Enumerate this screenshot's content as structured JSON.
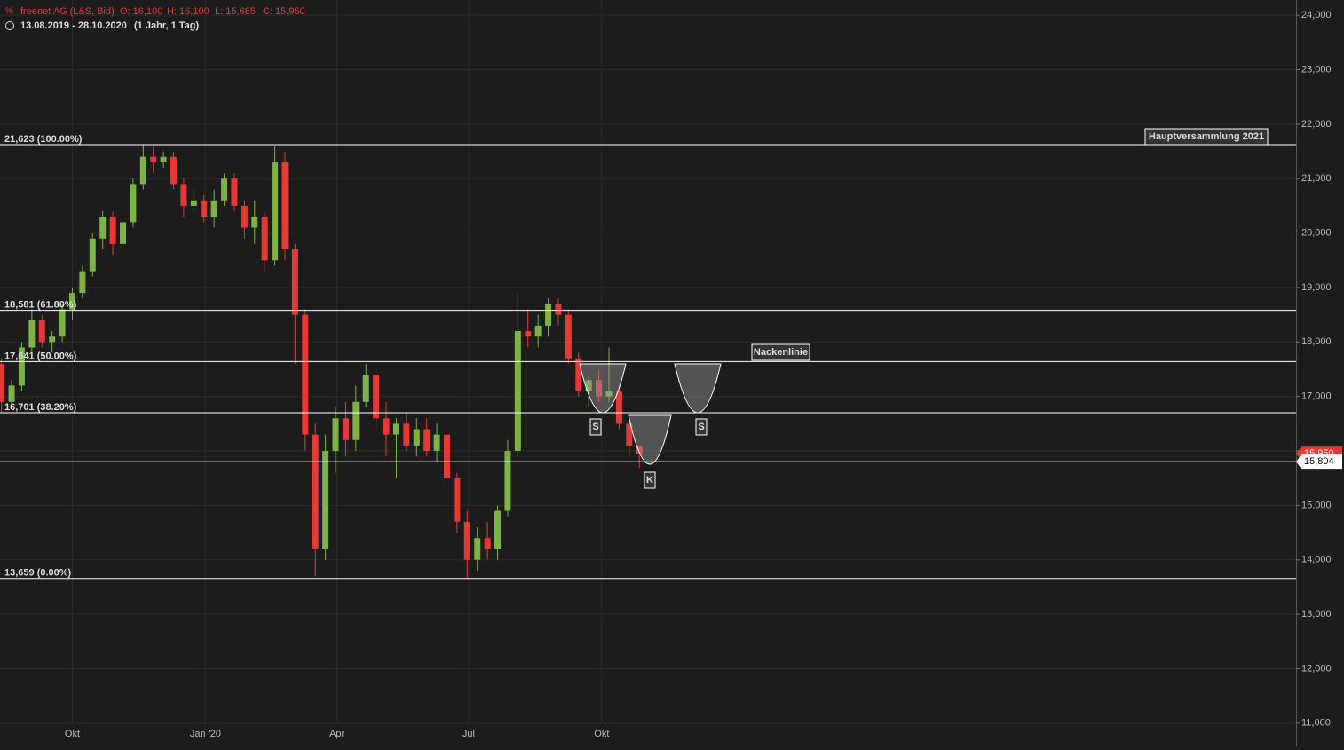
{
  "chart_data": {
    "type": "candlestick",
    "header": {
      "instrument": "freenet AG (L&S, Bid)",
      "ohlc": [
        "O: 16,100",
        "H: 16,100",
        "L: 15,685",
        "C: 15,950"
      ],
      "range": "13.08.2019 - 28.10.2020",
      "period": "(1 Jahr, 1 Tag)"
    },
    "x": [
      "2019-08-13",
      "2019-08-20",
      "2019-08-27",
      "2019-09-03",
      "2019-09-10",
      "2019-09-17",
      "2019-09-24",
      "2019-10-01",
      "2019-10-08",
      "2019-10-15",
      "2019-10-22",
      "2019-10-29",
      "2019-11-05",
      "2019-11-12",
      "2019-11-19",
      "2019-11-26",
      "2019-12-03",
      "2019-12-10",
      "2019-12-17",
      "2019-12-24",
      "2019-12-31",
      "2020-01-07",
      "2020-01-14",
      "2020-01-21",
      "2020-01-28",
      "2020-02-04",
      "2020-02-11",
      "2020-02-18",
      "2020-02-25",
      "2020-03-03",
      "2020-03-10",
      "2020-03-17",
      "2020-03-24",
      "2020-03-31",
      "2020-04-07",
      "2020-04-14",
      "2020-04-21",
      "2020-04-28",
      "2020-05-05",
      "2020-05-12",
      "2020-05-19",
      "2020-05-26",
      "2020-06-02",
      "2020-06-09",
      "2020-06-16",
      "2020-06-23",
      "2020-06-30",
      "2020-07-07",
      "2020-07-14",
      "2020-07-21",
      "2020-07-28",
      "2020-08-04",
      "2020-08-11",
      "2020-08-18",
      "2020-08-25",
      "2020-09-01",
      "2020-09-08",
      "2020-09-15",
      "2020-09-22",
      "2020-09-29",
      "2020-10-06",
      "2020-10-13",
      "2020-10-20",
      "2020-10-27"
    ],
    "open": [
      17.6,
      16.9,
      17.2,
      17.9,
      18.4,
      18.0,
      18.1,
      18.6,
      18.9,
      19.3,
      19.9,
      20.3,
      19.8,
      20.2,
      20.9,
      21.4,
      21.3,
      21.4,
      20.9,
      20.5,
      20.6,
      20.3,
      20.6,
      21.0,
      20.5,
      20.1,
      20.3,
      19.5,
      21.3,
      19.7,
      18.5,
      16.3,
      14.2,
      16.0,
      16.6,
      16.2,
      16.9,
      17.4,
      16.6,
      16.3,
      16.5,
      16.1,
      16.4,
      16.0,
      16.3,
      15.5,
      14.7,
      14.0,
      14.4,
      14.2,
      14.9,
      16.0,
      18.2,
      18.1,
      18.3,
      18.7,
      18.5,
      17.7,
      17.1,
      17.3,
      17.0,
      17.1,
      16.5,
      16.1
    ],
    "high": [
      17.7,
      17.3,
      18.0,
      18.6,
      18.5,
      18.2,
      18.7,
      19.0,
      19.4,
      20.0,
      20.4,
      20.4,
      20.3,
      21.0,
      21.62,
      21.6,
      21.5,
      21.5,
      21.0,
      20.8,
      20.7,
      20.8,
      21.1,
      21.1,
      20.6,
      20.6,
      20.4,
      21.6,
      21.5,
      19.8,
      18.6,
      16.5,
      16.3,
      16.8,
      16.9,
      17.2,
      17.6,
      17.5,
      16.9,
      16.6,
      16.7,
      16.6,
      16.6,
      16.5,
      16.4,
      15.6,
      14.9,
      14.6,
      14.7,
      15.0,
      16.2,
      18.9,
      18.6,
      18.5,
      18.8,
      18.8,
      18.6,
      17.8,
      17.4,
      17.5,
      17.9,
      17.2,
      16.6,
      16.1
    ],
    "low": [
      16.7,
      16.8,
      17.1,
      17.8,
      17.9,
      17.8,
      18.0,
      18.4,
      18.8,
      19.2,
      19.7,
      19.6,
      19.7,
      20.1,
      20.8,
      21.1,
      21.2,
      20.8,
      20.3,
      20.4,
      20.2,
      20.1,
      20.5,
      20.4,
      19.9,
      19.8,
      19.3,
      19.4,
      19.5,
      17.6,
      16.0,
      13.7,
      14.0,
      15.6,
      15.9,
      16.0,
      16.8,
      16.4,
      15.9,
      15.5,
      16.0,
      15.9,
      15.9,
      15.8,
      15.3,
      14.5,
      13.66,
      13.8,
      14.0,
      14.0,
      14.8,
      15.9,
      17.9,
      17.9,
      18.1,
      18.3,
      17.6,
      17.0,
      16.8,
      16.9,
      16.9,
      16.4,
      15.9,
      15.685
    ],
    "close": [
      16.9,
      17.2,
      17.9,
      18.4,
      18.0,
      18.1,
      18.6,
      18.9,
      19.3,
      19.9,
      20.3,
      19.8,
      20.2,
      20.9,
      21.4,
      21.3,
      21.4,
      20.9,
      20.5,
      20.6,
      20.3,
      20.6,
      21.0,
      20.5,
      20.1,
      20.3,
      19.5,
      21.3,
      19.7,
      18.5,
      16.3,
      14.2,
      16.0,
      16.6,
      16.2,
      16.9,
      17.4,
      16.6,
      16.3,
      16.5,
      16.1,
      16.4,
      16.0,
      16.3,
      15.5,
      14.7,
      14.0,
      14.4,
      14.2,
      14.9,
      16.0,
      18.2,
      18.1,
      18.3,
      18.7,
      18.5,
      17.7,
      17.1,
      17.3,
      17.0,
      17.1,
      16.5,
      16.1,
      15.95
    ],
    "up_color": "#7cb342",
    "down_color": "#e53935",
    "xlim": [
      "2019-08-12",
      "2022-01-24"
    ],
    "xticks": [
      {
        "value": "2019-10-01",
        "label": "Okt"
      },
      {
        "value": "2020-01-01",
        "label": "Jan '20"
      },
      {
        "value": "2020-04-01",
        "label": "Apr"
      },
      {
        "value": "2020-07-01",
        "label": "Jul"
      },
      {
        "value": "2020-10-01",
        "label": "Okt"
      }
    ],
    "ylim": [
      10.59,
      24.28
    ],
    "yticks": [
      {
        "value": 11,
        "label": "11,000"
      },
      {
        "value": 12,
        "label": "12,000"
      },
      {
        "value": 13,
        "label": "13,000"
      },
      {
        "value": 14,
        "label": "14,000"
      },
      {
        "value": 15,
        "label": "15,000"
      },
      {
        "value": 16,
        "label": "16,000"
      },
      {
        "value": 17,
        "label": "17,000"
      },
      {
        "value": 18,
        "label": "18,000"
      },
      {
        "value": 19,
        "label": "19,000"
      },
      {
        "value": 20,
        "label": "20,000"
      },
      {
        "value": 21,
        "label": "21,000"
      },
      {
        "value": 22,
        "label": "22,000"
      },
      {
        "value": 23,
        "label": "23,000"
      },
      {
        "value": 24,
        "label": "24,000"
      }
    ],
    "grid": true,
    "levels": [
      {
        "value": 21.623,
        "label": "21,623 (100.00%)"
      },
      {
        "value": 18.581,
        "label": "18,581 (61.80%)"
      },
      {
        "value": 17.641,
        "label": "17,641 (50.00%)"
      },
      {
        "value": 16.701,
        "label": "16,701 (38.20%)"
      },
      {
        "value": 13.659,
        "label": "13,659 (0.00%)"
      }
    ],
    "support": {
      "value": 15.804,
      "label": "15,804"
    },
    "last_price": {
      "value": 15.95,
      "label": "15,950"
    },
    "pattern_labels": [
      "S",
      "K",
      "S"
    ],
    "annotations": [
      "Nackenlinie",
      "Hauptversammlung 2021"
    ]
  }
}
